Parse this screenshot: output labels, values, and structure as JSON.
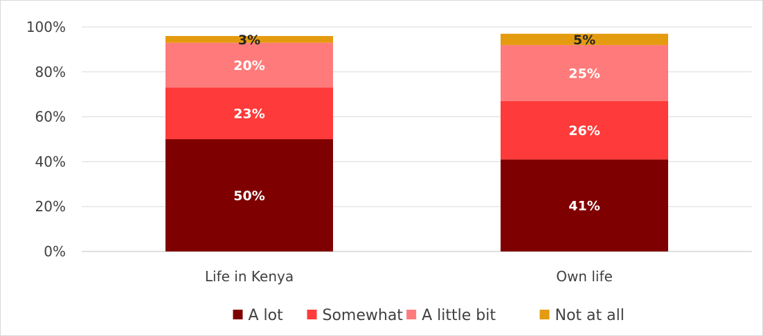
{
  "chart_data": {
    "type": "bar",
    "stacked": true,
    "categories": [
      "Life in Kenya",
      "Own life"
    ],
    "series": [
      {
        "name": "A lot",
        "values": [
          50,
          41
        ],
        "labels": [
          "50%",
          "41%"
        ],
        "color": "#7f0000",
        "label_color": "#ffffff"
      },
      {
        "name": "Somewhat",
        "values": [
          23,
          26
        ],
        "labels": [
          "23%",
          "26%"
        ],
        "color": "#ff3a3a",
        "label_color": "#ffffff"
      },
      {
        "name": "A little bit",
        "values": [
          20,
          25
        ],
        "labels": [
          "20%",
          "25%"
        ],
        "color": "#ff7b7b",
        "label_color": "#ffffff"
      },
      {
        "name": "Not at all",
        "values": [
          3,
          5
        ],
        "labels": [
          "3%",
          "5%"
        ],
        "color": "#e49b0f",
        "label_color": "#262626"
      }
    ],
    "y_ticks": [
      "0%",
      "20%",
      "40%",
      "60%",
      "80%",
      "100%"
    ],
    "ylim": [
      0,
      100
    ],
    "grid": true,
    "legend_position": "bottom"
  }
}
